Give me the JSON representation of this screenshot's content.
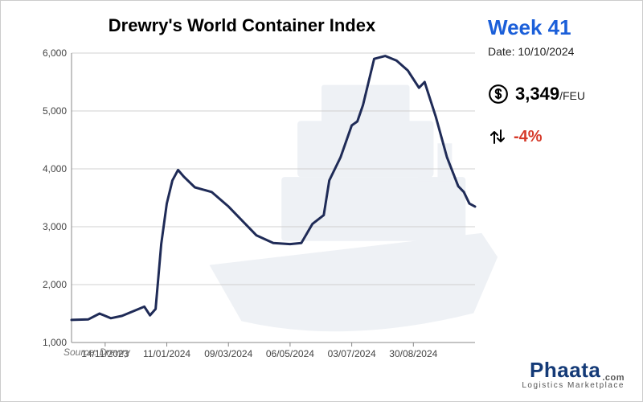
{
  "chart": {
    "title": "Drewry's World Container Index",
    "source": "Source: Drewry",
    "type": "line",
    "line_color": "#1f2b57",
    "line_width": 3,
    "background_color": "#ffffff",
    "grid_color": "#d0d0d0",
    "axis_color": "#888888",
    "tick_fontsize": 12,
    "tick_color": "#444444",
    "title_fontsize": 22,
    "ylim": [
      1000,
      6000
    ],
    "ytick_step": 1000,
    "yticks": [
      "1,000",
      "2,000",
      "3,000",
      "4,000",
      "5,000",
      "6,000"
    ],
    "xticks": [
      "14/11/2023",
      "11/01/2024",
      "09/03/2024",
      "06/05/2024",
      "03/07/2024",
      "30/08/2024"
    ],
    "series": [
      {
        "x": 0,
        "y": 1390
      },
      {
        "x": 3,
        "y": 1400
      },
      {
        "x": 5,
        "y": 1500
      },
      {
        "x": 7,
        "y": 1420
      },
      {
        "x": 9,
        "y": 1460
      },
      {
        "x": 11,
        "y": 1540
      },
      {
        "x": 13,
        "y": 1620
      },
      {
        "x": 14,
        "y": 1470
      },
      {
        "x": 15,
        "y": 1580
      },
      {
        "x": 16,
        "y": 2700
      },
      {
        "x": 17,
        "y": 3400
      },
      {
        "x": 18,
        "y": 3800
      },
      {
        "x": 19,
        "y": 3980
      },
      {
        "x": 20,
        "y": 3870
      },
      {
        "x": 22,
        "y": 3680
      },
      {
        "x": 25,
        "y": 3600
      },
      {
        "x": 28,
        "y": 3350
      },
      {
        "x": 33,
        "y": 2850
      },
      {
        "x": 36,
        "y": 2720
      },
      {
        "x": 39,
        "y": 2700
      },
      {
        "x": 41,
        "y": 2720
      },
      {
        "x": 43,
        "y": 3050
      },
      {
        "x": 45,
        "y": 3200
      },
      {
        "x": 46,
        "y": 3800
      },
      {
        "x": 48,
        "y": 4200
      },
      {
        "x": 50,
        "y": 4750
      },
      {
        "x": 51,
        "y": 4820
      },
      {
        "x": 52,
        "y": 5100
      },
      {
        "x": 54,
        "y": 5900
      },
      {
        "x": 56,
        "y": 5950
      },
      {
        "x": 58,
        "y": 5870
      },
      {
        "x": 60,
        "y": 5700
      },
      {
        "x": 62,
        "y": 5400
      },
      {
        "x": 63,
        "y": 5500
      },
      {
        "x": 65,
        "y": 4900
      },
      {
        "x": 67,
        "y": 4200
      },
      {
        "x": 69,
        "y": 3700
      },
      {
        "x": 70,
        "y": 3600
      },
      {
        "x": 71,
        "y": 3400
      },
      {
        "x": 72,
        "y": 3349
      }
    ],
    "x_range": [
      0,
      72
    ],
    "xtick_positions": [
      6,
      17,
      28,
      39,
      50,
      61
    ]
  },
  "side": {
    "week_label": "Week 41",
    "date_label": "Date: 10/10/2024",
    "price_value": "3,349",
    "price_unit": "/FEU",
    "change_value": "-4%",
    "change_color": "#d63a2a"
  },
  "logo": {
    "brand": "Phaata",
    "dotcom": ".com",
    "tagline": "Logistics   Marketplace",
    "brand_color": "#143a77"
  },
  "watermark": {
    "ship_fill": "#e9edf2",
    "container_fill": "#eef1f5"
  }
}
